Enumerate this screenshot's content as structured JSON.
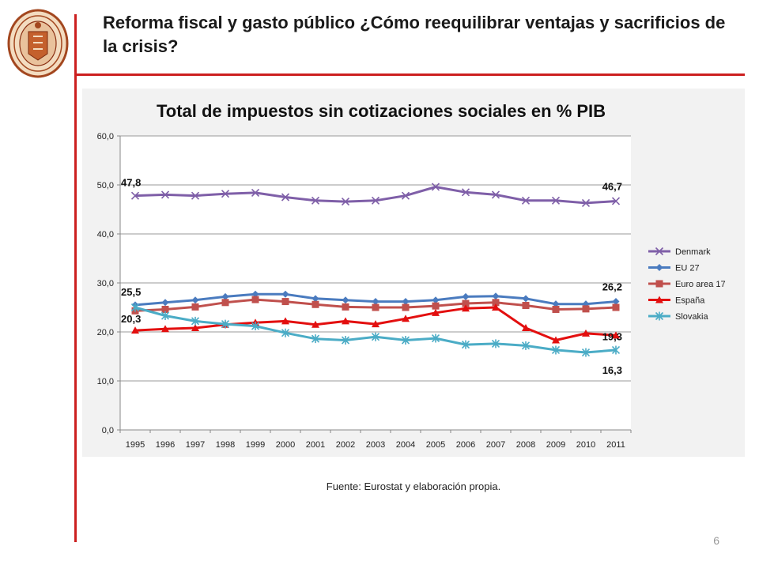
{
  "slide": {
    "title": "Reforma fiscal y gasto público ¿Cómo reequilibrar ventajas y sacrificios de la crisis?",
    "source": "Fuente: Eurostat y elaboración propia.",
    "page_number": "6",
    "accent_color": "#cc1f1f",
    "logo": "university-seal-icon"
  },
  "chart_data": {
    "type": "line",
    "title": "Total de impuestos sin cotizaciones sociales en % PIB",
    "xlabel": "",
    "ylabel": "",
    "x": [
      "1995",
      "1996",
      "1997",
      "1998",
      "1999",
      "2000",
      "2001",
      "2002",
      "2003",
      "2004",
      "2005",
      "2006",
      "2007",
      "2008",
      "2009",
      "2010",
      "2011"
    ],
    "ylim": [
      0,
      60
    ],
    "yticks": [
      "0,0",
      "10,0",
      "20,0",
      "30,0",
      "40,0",
      "50,0",
      "60,0"
    ],
    "grid": true,
    "legend": "right",
    "series": [
      {
        "name": "Denmark",
        "color": "#7f5fa8",
        "marker": "x",
        "values": [
          47.8,
          48.0,
          47.8,
          48.2,
          48.4,
          47.5,
          46.8,
          46.6,
          46.8,
          47.8,
          49.6,
          48.5,
          48.0,
          46.8,
          46.8,
          46.3,
          46.7
        ]
      },
      {
        "name": "EU 27",
        "color": "#4a7bbf",
        "marker": "diamond",
        "values": [
          25.5,
          26.0,
          26.5,
          27.2,
          27.7,
          27.7,
          26.8,
          26.5,
          26.2,
          26.2,
          26.5,
          27.2,
          27.3,
          26.8,
          25.7,
          25.7,
          26.2
        ]
      },
      {
        "name": "Euro area 17",
        "color": "#c0504d",
        "marker": "square",
        "values": [
          24.3,
          24.6,
          25.1,
          26.0,
          26.6,
          26.2,
          25.6,
          25.1,
          25.0,
          25.0,
          25.3,
          25.8,
          26.0,
          25.4,
          24.6,
          24.7,
          25.0
        ]
      },
      {
        "name": "España",
        "color": "#e30f0f",
        "marker": "triangle",
        "values": [
          20.3,
          20.6,
          20.8,
          21.5,
          21.9,
          22.2,
          21.5,
          22.2,
          21.6,
          22.7,
          23.9,
          24.8,
          25.0,
          20.8,
          18.3,
          19.7,
          19.3
        ]
      },
      {
        "name": "Slovakia",
        "color": "#4bacc6",
        "marker": "star",
        "values": [
          25.0,
          23.3,
          22.2,
          21.6,
          21.2,
          19.8,
          18.6,
          18.3,
          19.0,
          18.3,
          18.7,
          17.4,
          17.6,
          17.2,
          16.3,
          15.8,
          16.3
        ]
      }
    ],
    "annotations": [
      "47,8",
      "46,7",
      "25,5",
      "26,2",
      "20,3",
      "19,3",
      "16,3"
    ]
  }
}
